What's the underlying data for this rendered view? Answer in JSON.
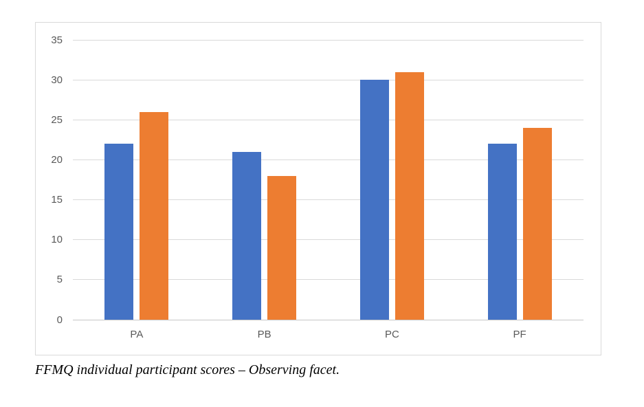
{
  "caption": "FFMQ individual participant scores – Observing facet.",
  "chart_data": {
    "type": "bar",
    "title": "",
    "xlabel": "",
    "ylabel": "",
    "categories": [
      "PA",
      "PB",
      "PC",
      "PF"
    ],
    "series": [
      {
        "color": "#4472C4",
        "values": [
          22,
          21,
          30,
          22
        ]
      },
      {
        "color": "#ED7D31",
        "values": [
          26,
          18,
          31,
          24
        ]
      }
    ],
    "ylim": [
      0,
      35
    ],
    "ytick_step": 5,
    "grid": true,
    "legend_position": "none"
  },
  "colors": {
    "background": "#FFFFFF",
    "frame_border": "#D9D9D9",
    "gridline": "#D9D9D9",
    "axis_line": "#C6C6C6",
    "tick_label": "#595959"
  }
}
